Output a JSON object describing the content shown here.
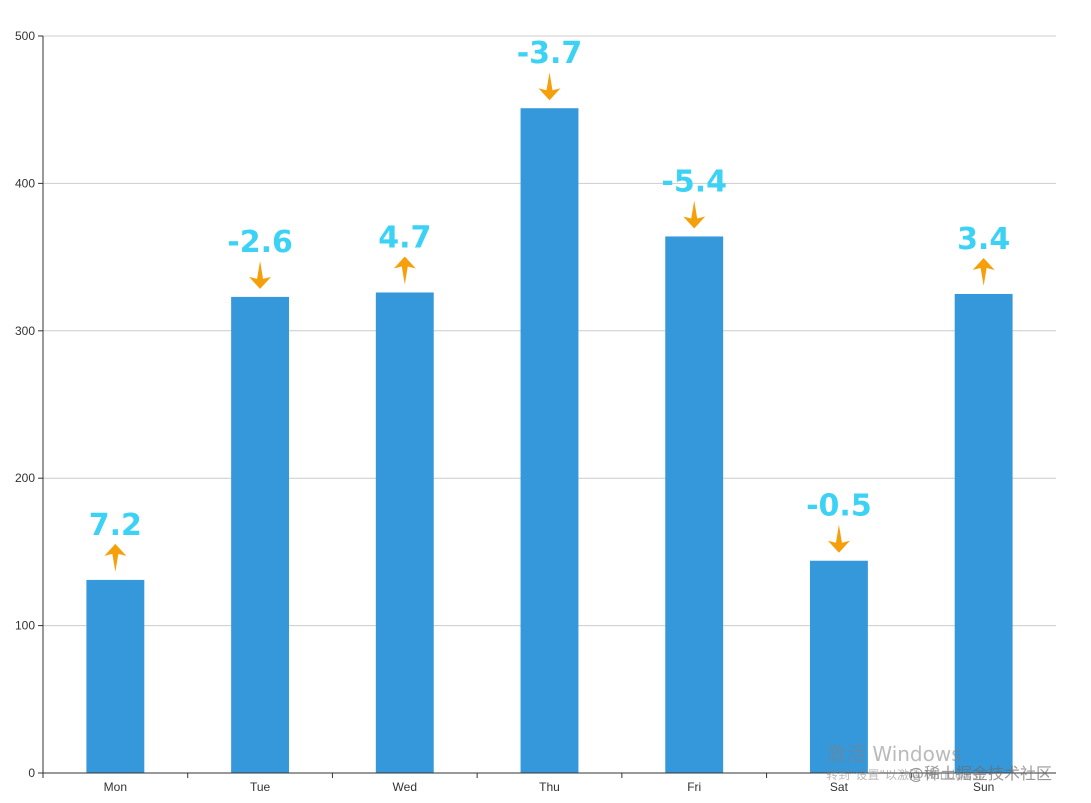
{
  "chart_data": {
    "type": "bar",
    "categories": [
      "Mon",
      "Tue",
      "Wed",
      "Thu",
      "Fri",
      "Sat",
      "Sun"
    ],
    "values": [
      131,
      323,
      326,
      451,
      364,
      144,
      325
    ],
    "changes": [
      "7.2",
      "-2.6",
      "4.7",
      "-3.7",
      "-5.4",
      "-0.5",
      "3.4"
    ],
    "ylim": [
      0,
      500
    ],
    "yticks": [
      0,
      100,
      200,
      300,
      400,
      500
    ],
    "grid": true,
    "colors": {
      "bar": "#3498db",
      "change_label": "#3bd2f5",
      "arrow": "#f5a00a",
      "grid": "#cccccc",
      "axis": "#333333"
    }
  },
  "watermark": {
    "activate": "激活 Windows",
    "settings": "转到\"设置\"以激活 Windows。",
    "site": "@稀土掘金技术社区"
  }
}
